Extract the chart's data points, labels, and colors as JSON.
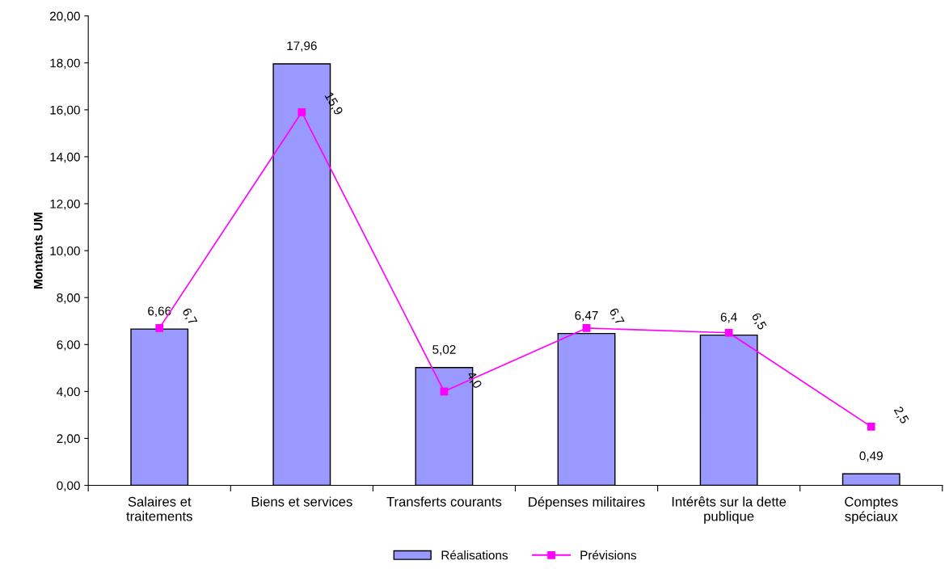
{
  "chart_data": {
    "type": "bar",
    "ylabel": "Montants UM",
    "categories": [
      "Salaires et\ntraitements",
      "Biens et services",
      "Transferts courants",
      "Dépenses militaires",
      "Intérêts sur la dette\npublique",
      "Comptes\nspéciaux"
    ],
    "series": [
      {
        "name": "Réalisations",
        "type": "bar",
        "color": "#9999ff",
        "values": [
          6.66,
          17.96,
          5.02,
          6.47,
          6.4,
          0.49
        ],
        "value_labels": [
          "6,66",
          "17,96",
          "5,02",
          "6,47",
          "6,4",
          "0,49"
        ]
      },
      {
        "name": "Prévisions",
        "type": "line",
        "color": "#ff00ff",
        "marker": "square",
        "line_style": "solid",
        "values": [
          6.7,
          15.9,
          4.0,
          6.7,
          6.5,
          2.5
        ],
        "value_labels": [
          "6,7",
          "15,9",
          "4,0",
          "6,7",
          "6,5",
          "2,5"
        ]
      }
    ],
    "ylim": [
      0,
      20
    ],
    "yticks": [
      {
        "value": 0,
        "label": "0,00"
      },
      {
        "value": 2,
        "label": "2,00"
      },
      {
        "value": 4,
        "label": "4,00"
      },
      {
        "value": 6,
        "label": "6,00"
      },
      {
        "value": 8,
        "label": "8,00"
      },
      {
        "value": 10,
        "label": "10,00"
      },
      {
        "value": 12,
        "label": "12,00"
      },
      {
        "value": 14,
        "label": "14,00"
      },
      {
        "value": 16,
        "label": "16,00"
      },
      {
        "value": 18,
        "label": "18,00"
      },
      {
        "value": 20,
        "label": "20,00"
      }
    ],
    "grid": false,
    "legend": "bottom"
  }
}
